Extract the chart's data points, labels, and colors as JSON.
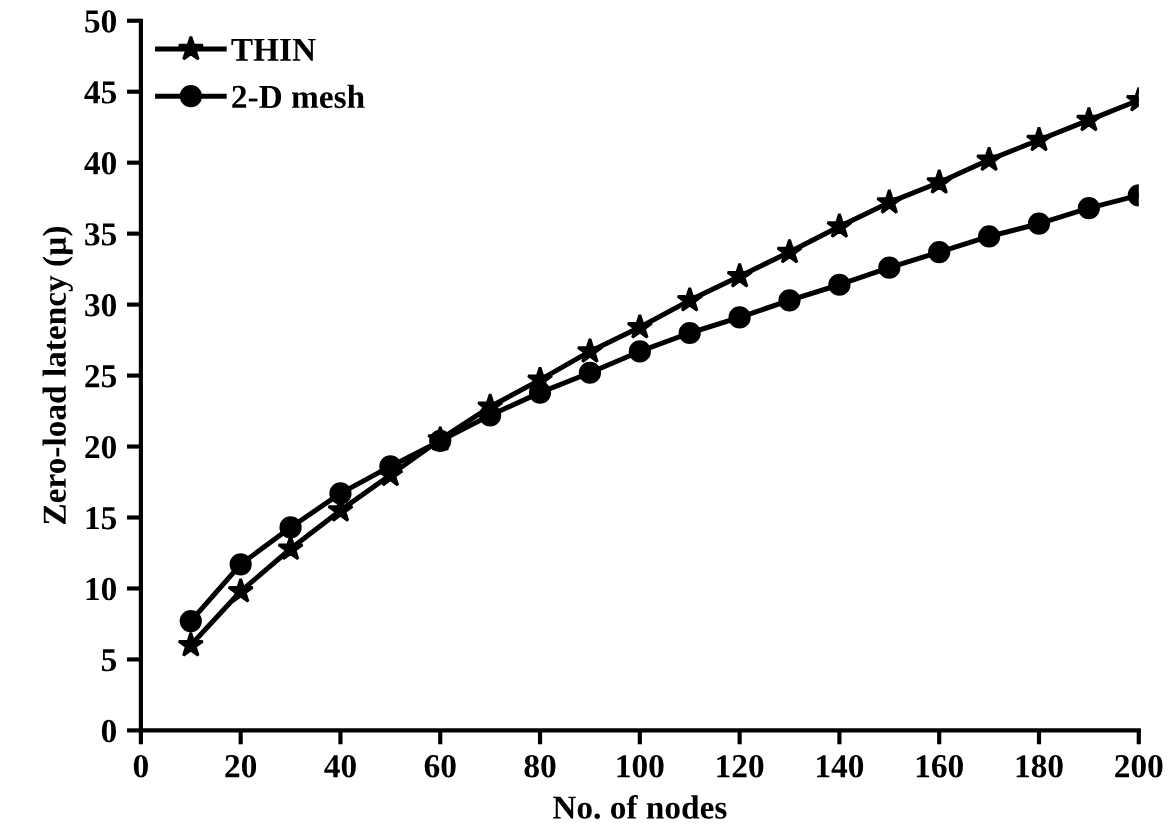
{
  "chart_data": {
    "type": "line",
    "xlabel": "No. of nodes",
    "ylabel": "Zero-load latency (µ)",
    "x": [
      10,
      20,
      30,
      40,
      50,
      60,
      70,
      80,
      90,
      100,
      110,
      120,
      130,
      140,
      150,
      160,
      170,
      180,
      190,
      200
    ],
    "series": [
      {
        "name": "THIN",
        "color": "#000000",
        "marker": "star",
        "values": [
          6,
          9.8,
          12.8,
          15.5,
          18,
          20.5,
          22.8,
          24.7,
          26.7,
          28.4,
          30.3,
          32,
          33.7,
          35.5,
          37.2,
          38.6,
          40.2,
          41.6,
          43,
          44.4
        ]
      },
      {
        "name": "2-D mesh",
        "color": "#000000",
        "marker": "circle",
        "values": [
          7.7,
          11.7,
          14.3,
          16.7,
          18.6,
          20.4,
          22.2,
          23.8,
          25.2,
          26.7,
          28,
          29.1,
          30.3,
          31.4,
          32.6,
          33.7,
          34.8,
          35.7,
          36.8,
          37.7
        ]
      }
    ],
    "xlim": [
      0,
      200
    ],
    "xticks": [
      0,
      20,
      40,
      60,
      80,
      100,
      120,
      140,
      160,
      180,
      200
    ],
    "ylim": [
      0,
      50
    ],
    "yticks": [
      0,
      5,
      10,
      15,
      20,
      25,
      30,
      35,
      40,
      45,
      50
    ],
    "legend": "top left",
    "grid": false,
    "line_style": "solid"
  }
}
